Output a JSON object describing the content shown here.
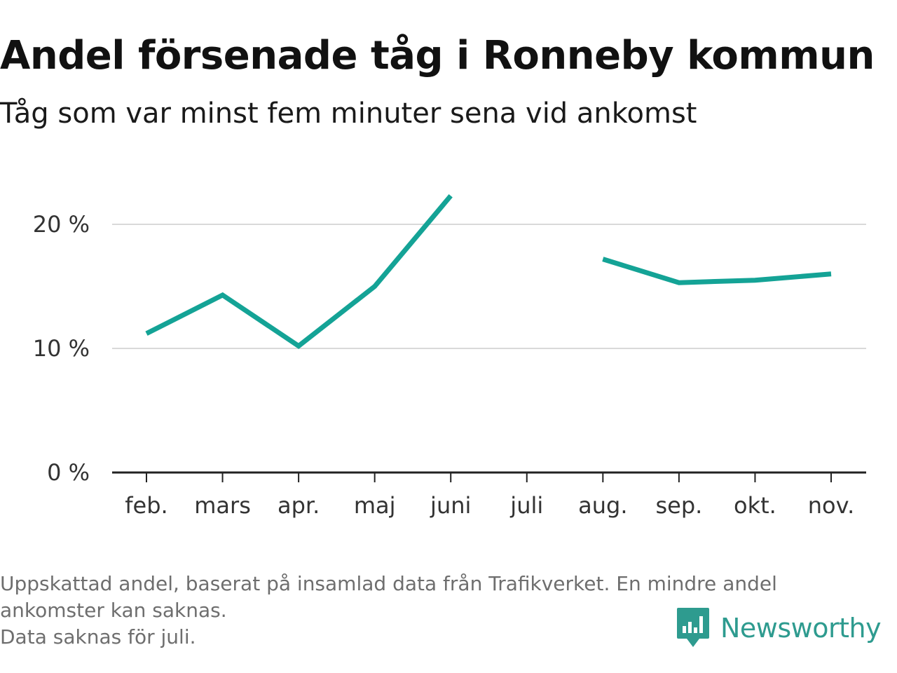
{
  "header": {
    "title": "Andel försenade tåg i Ronneby kommun",
    "subtitle": "Tåg som var minst fem minuter sena vid ankomst"
  },
  "footnote": {
    "line1": "Uppskattad andel, baserat på insamlad data från Trafikverket. En mindre andel",
    "line2": "ankomster kan saknas.",
    "line3": "Data saknas för juli."
  },
  "brand": {
    "name": "Newsworthy",
    "logo_icon": "newsworthy-logo-icon",
    "color": "#2e9b8f"
  },
  "colors": {
    "series": "#14a396",
    "grid": "#d9d9d9",
    "axis": "#222222"
  },
  "chart_data": {
    "type": "line",
    "categories": [
      "feb.",
      "mars",
      "apr.",
      "maj",
      "juni",
      "juli",
      "aug.",
      "sep.",
      "okt.",
      "nov."
    ],
    "series": [
      {
        "values": [
          11.2,
          14.3,
          10.2,
          15.0,
          22.3,
          null,
          17.2,
          15.3,
          15.5,
          16.0
        ]
      }
    ],
    "y_ticks": [
      0,
      10,
      20
    ],
    "y_tick_labels": [
      "0 %",
      "10 %",
      "20 %"
    ],
    "ylim": [
      0,
      24
    ],
    "xlabel": "",
    "ylabel": "",
    "grid": true,
    "legend": "none"
  }
}
